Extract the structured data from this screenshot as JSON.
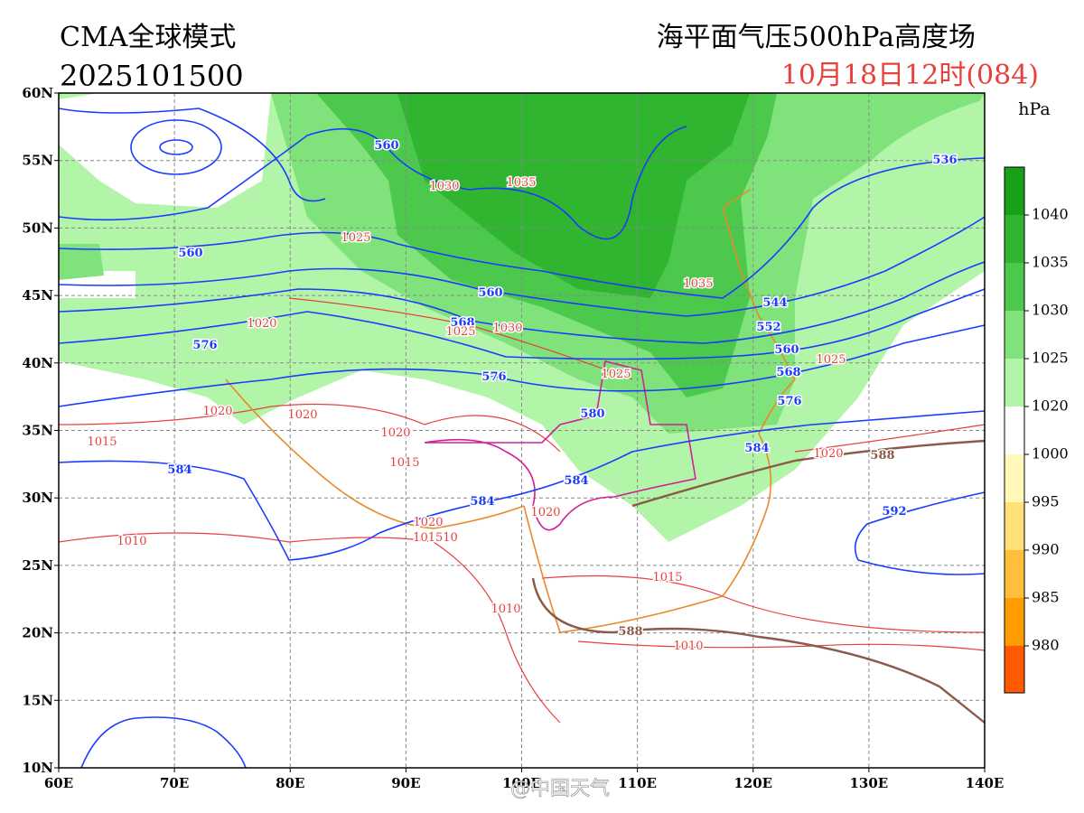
{
  "header": {
    "model": "CMA全球模式",
    "init_time": "2025101500",
    "product": "海平面气压500hPa高度场",
    "valid_time": "10月18日12时(084)"
  },
  "axes": {
    "lat_labels": [
      "60N",
      "55N",
      "50N",
      "45N",
      "40N",
      "35N",
      "30N",
      "25N",
      "20N",
      "15N",
      "10N"
    ],
    "lon_labels": [
      "60E",
      "70E",
      "80E",
      "90E",
      "100E",
      "110E",
      "120E",
      "130E",
      "140E"
    ]
  },
  "colorbar": {
    "unit": "hPa",
    "labels": [
      1040,
      1035,
      1030,
      1025,
      1020,
      1000,
      995,
      990,
      985,
      980
    ],
    "colors": [
      "#17a117",
      "#2fb52f",
      "#4cc94c",
      "#80e27a",
      "#b3f5a8",
      "#ffffff",
      "#fff8b8",
      "#ffe079",
      "#ffbf3c",
      "#ff9c00",
      "#ff5a00"
    ]
  },
  "contour_labels": {
    "height": [
      "560",
      "560",
      "560",
      "568",
      "576",
      "576",
      "580",
      "584",
      "584",
      "584",
      "584",
      "544",
      "552",
      "560",
      "568",
      "576",
      "536",
      "592"
    ],
    "height_588": [
      "588",
      "588"
    ],
    "pressure": [
      "1030",
      "1035",
      "1025",
      "1035",
      "1020",
      "1030",
      "1025",
      "1025",
      "1025",
      "1020",
      "1020",
      "1020",
      "1015",
      "1015",
      "1020",
      "1020",
      "101510",
      "1010",
      "1010",
      "1015",
      "1010",
      "1020"
    ]
  },
  "watermark": "@中国天气"
}
